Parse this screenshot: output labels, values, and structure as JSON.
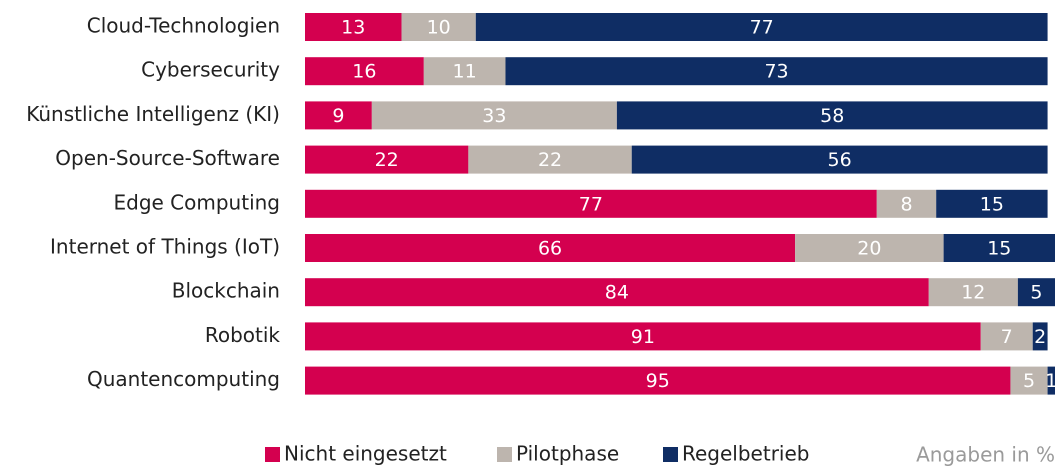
{
  "chart_data": {
    "type": "bar",
    "orientation": "horizontal",
    "stacked": true,
    "categories": [
      "Cloud-Technologien",
      "Cybersecurity",
      "Künstliche Intelligenz (KI)",
      "Open-Source-Software",
      "Edge Computing",
      "Internet of Things (IoT)",
      "Blockchain",
      "Robotik",
      "Quantencomputing"
    ],
    "series": [
      {
        "name": "Nicht eingesetzt",
        "color": "#d4004f",
        "values": [
          13,
          16,
          9,
          22,
          77,
          66,
          84,
          91,
          95
        ]
      },
      {
        "name": "Pilotphase",
        "color": "#bdb5ae",
        "values": [
          10,
          11,
          33,
          22,
          8,
          20,
          12,
          7,
          5
        ]
      },
      {
        "name": "Regelbetrieb",
        "color": "#0f2d64",
        "values": [
          77,
          73,
          58,
          56,
          15,
          15,
          5,
          2,
          1
        ]
      }
    ],
    "xlim": [
      0,
      101
    ],
    "legend": "bottom",
    "note": "Angaben in %"
  }
}
